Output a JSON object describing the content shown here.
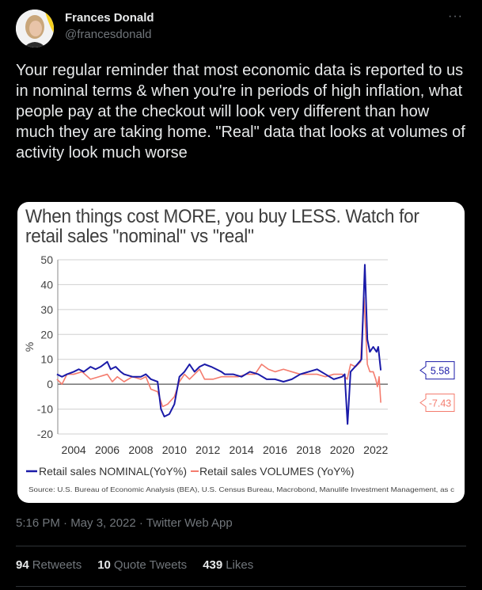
{
  "author": {
    "name": "Frances Donald",
    "handle": "@francesdonald"
  },
  "more_icon": "ellipsis-icon",
  "tweet_text": "Your regular reminder that most economic data is reported to us in nominal terms & when you're in periods of high inflation, what people pay at the checkout will look very different than how much they are taking home. \"Real\" data that looks at volumes of activity look much worse",
  "meta": {
    "timestamp": "5:16 PM · May 3, 2022 · Twitter Web App"
  },
  "stats": [
    {
      "count": "94",
      "label": "Retweets"
    },
    {
      "count": "10",
      "label": "Quote Tweets"
    },
    {
      "count": "439",
      "label": "Likes"
    }
  ],
  "colors": {
    "nominal": "#1a1aa8",
    "volumes": "#f47c6e"
  },
  "chart_data": {
    "type": "line",
    "title": "When things cost MORE, you buy LESS. Watch for retail sales \"nominal\" vs \"real\"",
    "ylabel": "%",
    "ylim": [
      -20,
      50
    ],
    "yticks": [
      "50",
      "40",
      "30",
      "20",
      "10",
      "0",
      "-10",
      "-20"
    ],
    "yticks_values": [
      50,
      40,
      30,
      20,
      10,
      0,
      -10,
      -20
    ],
    "xlim": [
      2003,
      2022.6
    ],
    "xticks": [
      "2004",
      "2006",
      "2008",
      "2010",
      "2012",
      "2014",
      "2016",
      "2018",
      "2020",
      "2022"
    ],
    "grid": true,
    "legend_position": "bottom",
    "source": "Source: U.S. Bureau of Economic Analysis (BEA), U.S. Census Bureau, Macrobond, Manulife Investment Management, as c",
    "series": [
      {
        "name": "Retail sales NOMINAL(YoY%)",
        "end_label": "5.58",
        "points": [
          [
            2003,
            4
          ],
          [
            2003.3,
            3
          ],
          [
            2003.6,
            4
          ],
          [
            2004,
            5
          ],
          [
            2004.3,
            6
          ],
          [
            2004.6,
            5
          ],
          [
            2005,
            7
          ],
          [
            2005.3,
            6
          ],
          [
            2005.6,
            7
          ],
          [
            2006,
            9
          ],
          [
            2006.2,
            6
          ],
          [
            2006.5,
            7
          ],
          [
            2006.8,
            5
          ],
          [
            2007,
            4
          ],
          [
            2007.5,
            3
          ],
          [
            2008,
            3
          ],
          [
            2008.3,
            4
          ],
          [
            2008.6,
            2
          ],
          [
            2009,
            1
          ],
          [
            2009.2,
            -10
          ],
          [
            2009.4,
            -13
          ],
          [
            2009.7,
            -12
          ],
          [
            2010,
            -8
          ],
          [
            2010.3,
            3
          ],
          [
            2010.6,
            5
          ],
          [
            2010.9,
            8
          ],
          [
            2011.2,
            5
          ],
          [
            2011.5,
            7
          ],
          [
            2011.8,
            8
          ],
          [
            2012.2,
            7
          ],
          [
            2012.5,
            6
          ],
          [
            2012.8,
            5
          ],
          [
            2013,
            4
          ],
          [
            2013.5,
            4
          ],
          [
            2014,
            3
          ],
          [
            2014.5,
            5
          ],
          [
            2015,
            4
          ],
          [
            2015.5,
            2
          ],
          [
            2016,
            2
          ],
          [
            2016.5,
            1
          ],
          [
            2017,
            2
          ],
          [
            2017.5,
            4
          ],
          [
            2018,
            5
          ],
          [
            2018.5,
            6
          ],
          [
            2019,
            4
          ],
          [
            2019.5,
            2
          ],
          [
            2020,
            3
          ],
          [
            2020.15,
            4
          ],
          [
            2020.32,
            -16
          ],
          [
            2020.5,
            5
          ],
          [
            2020.9,
            8
          ],
          [
            2021.15,
            10
          ],
          [
            2021.35,
            48
          ],
          [
            2021.5,
            18
          ],
          [
            2021.65,
            13
          ],
          [
            2021.85,
            15
          ],
          [
            2022.05,
            13
          ],
          [
            2022.15,
            15
          ],
          [
            2022.3,
            5.58
          ]
        ]
      },
      {
        "name": "Retail sales VOLUMES (YoY%)",
        "end_label": "-7.43",
        "points": [
          [
            2003,
            2
          ],
          [
            2003.3,
            0
          ],
          [
            2003.6,
            4
          ],
          [
            2004,
            4
          ],
          [
            2004.5,
            5
          ],
          [
            2005,
            2
          ],
          [
            2005.5,
            3
          ],
          [
            2006,
            4
          ],
          [
            2006.3,
            1
          ],
          [
            2006.6,
            3
          ],
          [
            2007,
            1
          ],
          [
            2007.5,
            3
          ],
          [
            2008,
            2
          ],
          [
            2008.3,
            3
          ],
          [
            2008.6,
            -2
          ],
          [
            2009,
            -3
          ],
          [
            2009.3,
            -9
          ],
          [
            2009.6,
            -8
          ],
          [
            2010,
            -5
          ],
          [
            2010.3,
            1
          ],
          [
            2010.6,
            4
          ],
          [
            2010.9,
            2
          ],
          [
            2011.2,
            4
          ],
          [
            2011.5,
            6
          ],
          [
            2011.8,
            2
          ],
          [
            2012.3,
            2
          ],
          [
            2012.8,
            3
          ],
          [
            2013.3,
            3
          ],
          [
            2013.8,
            3
          ],
          [
            2014.3,
            4
          ],
          [
            2014.8,
            4
          ],
          [
            2015.2,
            8
          ],
          [
            2015.6,
            6
          ],
          [
            2016,
            5
          ],
          [
            2016.5,
            6
          ],
          [
            2017,
            5
          ],
          [
            2017.5,
            4
          ],
          [
            2018,
            4
          ],
          [
            2018.5,
            4
          ],
          [
            2019,
            3
          ],
          [
            2019.5,
            4
          ],
          [
            2020,
            4
          ],
          [
            2020.3,
            2
          ],
          [
            2020.5,
            8
          ],
          [
            2020.8,
            7
          ],
          [
            2021.1,
            9
          ],
          [
            2021.3,
            35
          ],
          [
            2021.5,
            8
          ],
          [
            2021.65,
            5
          ],
          [
            2021.85,
            5
          ],
          [
            2022,
            2
          ],
          [
            2022.1,
            -1
          ],
          [
            2022.2,
            3
          ],
          [
            2022.3,
            -7.43
          ]
        ]
      }
    ]
  }
}
